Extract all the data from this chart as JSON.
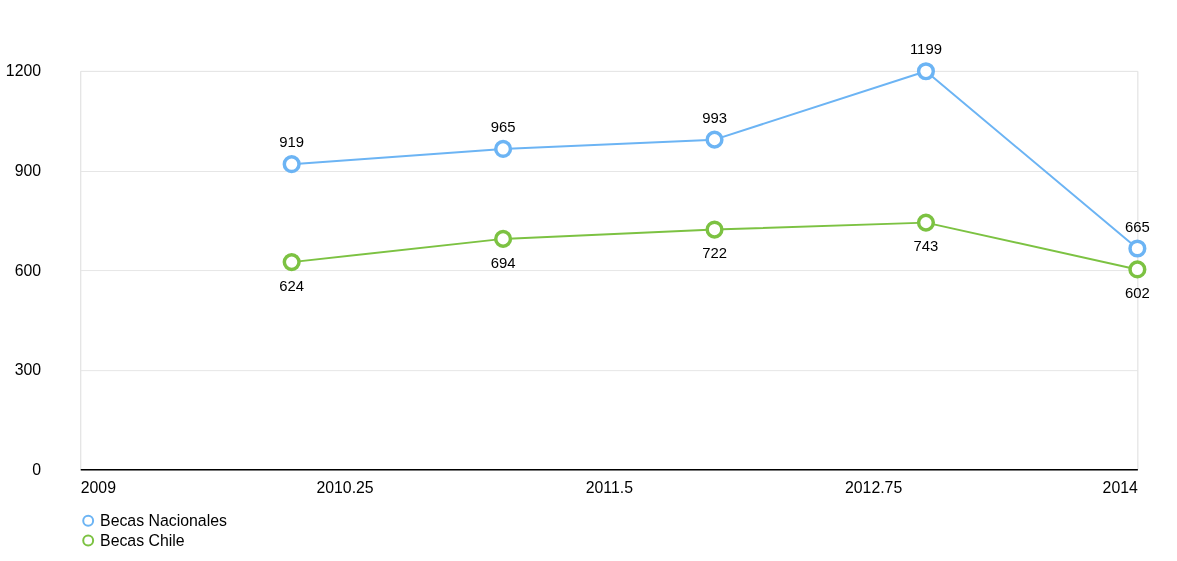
{
  "chart_data": {
    "type": "line",
    "x": [
      2010,
      2011,
      2012,
      2013,
      2014
    ],
    "series": [
      {
        "name": "Becas Nacionales",
        "color": "#6cb4f4",
        "values": [
          919,
          965,
          993,
          1199,
          665
        ]
      },
      {
        "name": "Becas Chile",
        "color": "#7cc242",
        "values": [
          624,
          694,
          722,
          743,
          602
        ]
      }
    ],
    "xlim": [
      2009,
      2014
    ],
    "xticks": [
      2009,
      2010.25,
      2011.5,
      2012.75,
      2014
    ],
    "ylim": [
      0,
      1200
    ],
    "yticks": [
      0,
      300,
      600,
      900,
      1200
    ],
    "grid": "y",
    "legend": "bottom",
    "marker": "circle",
    "line_style": "solid",
    "data_labels": true
  }
}
